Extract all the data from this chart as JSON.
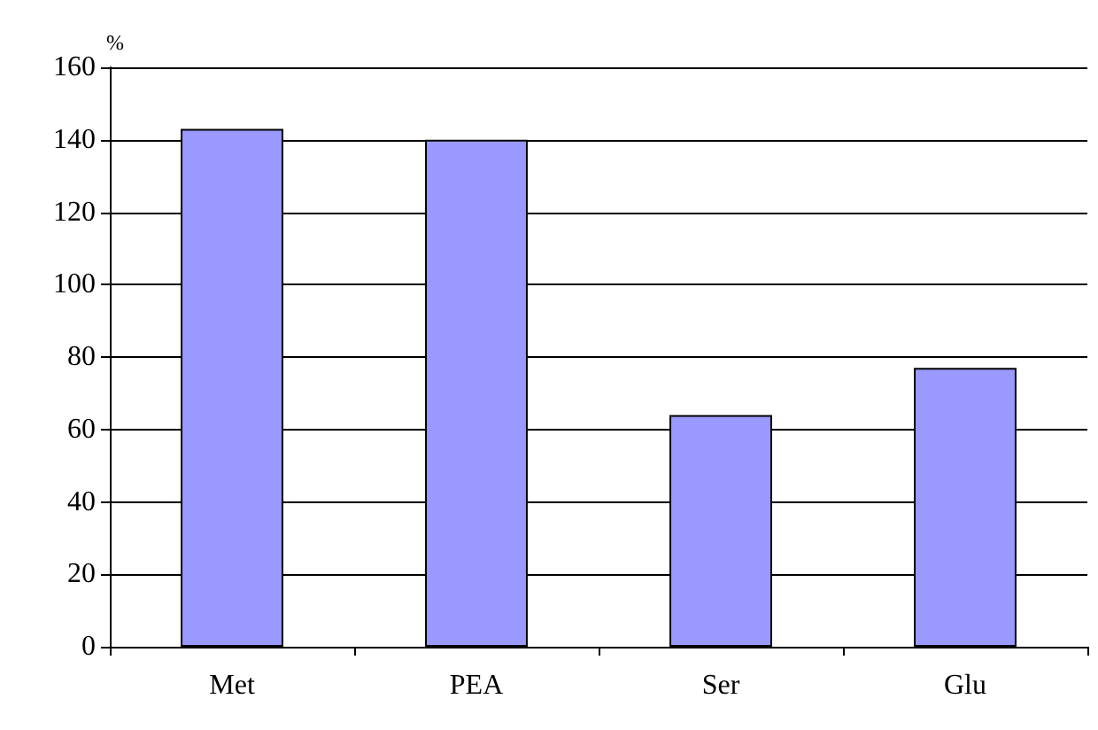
{
  "chart_data": {
    "type": "bar",
    "ylabel": "%",
    "categories": [
      "Met",
      "PEA",
      "Ser",
      "Glu"
    ],
    "values": [
      143,
      140,
      64,
      77
    ],
    "color": "#9999ff",
    "ylim": [
      0,
      160
    ],
    "yticks": [
      0,
      20,
      40,
      60,
      80,
      100,
      120,
      140,
      160
    ],
    "grid": "y"
  }
}
